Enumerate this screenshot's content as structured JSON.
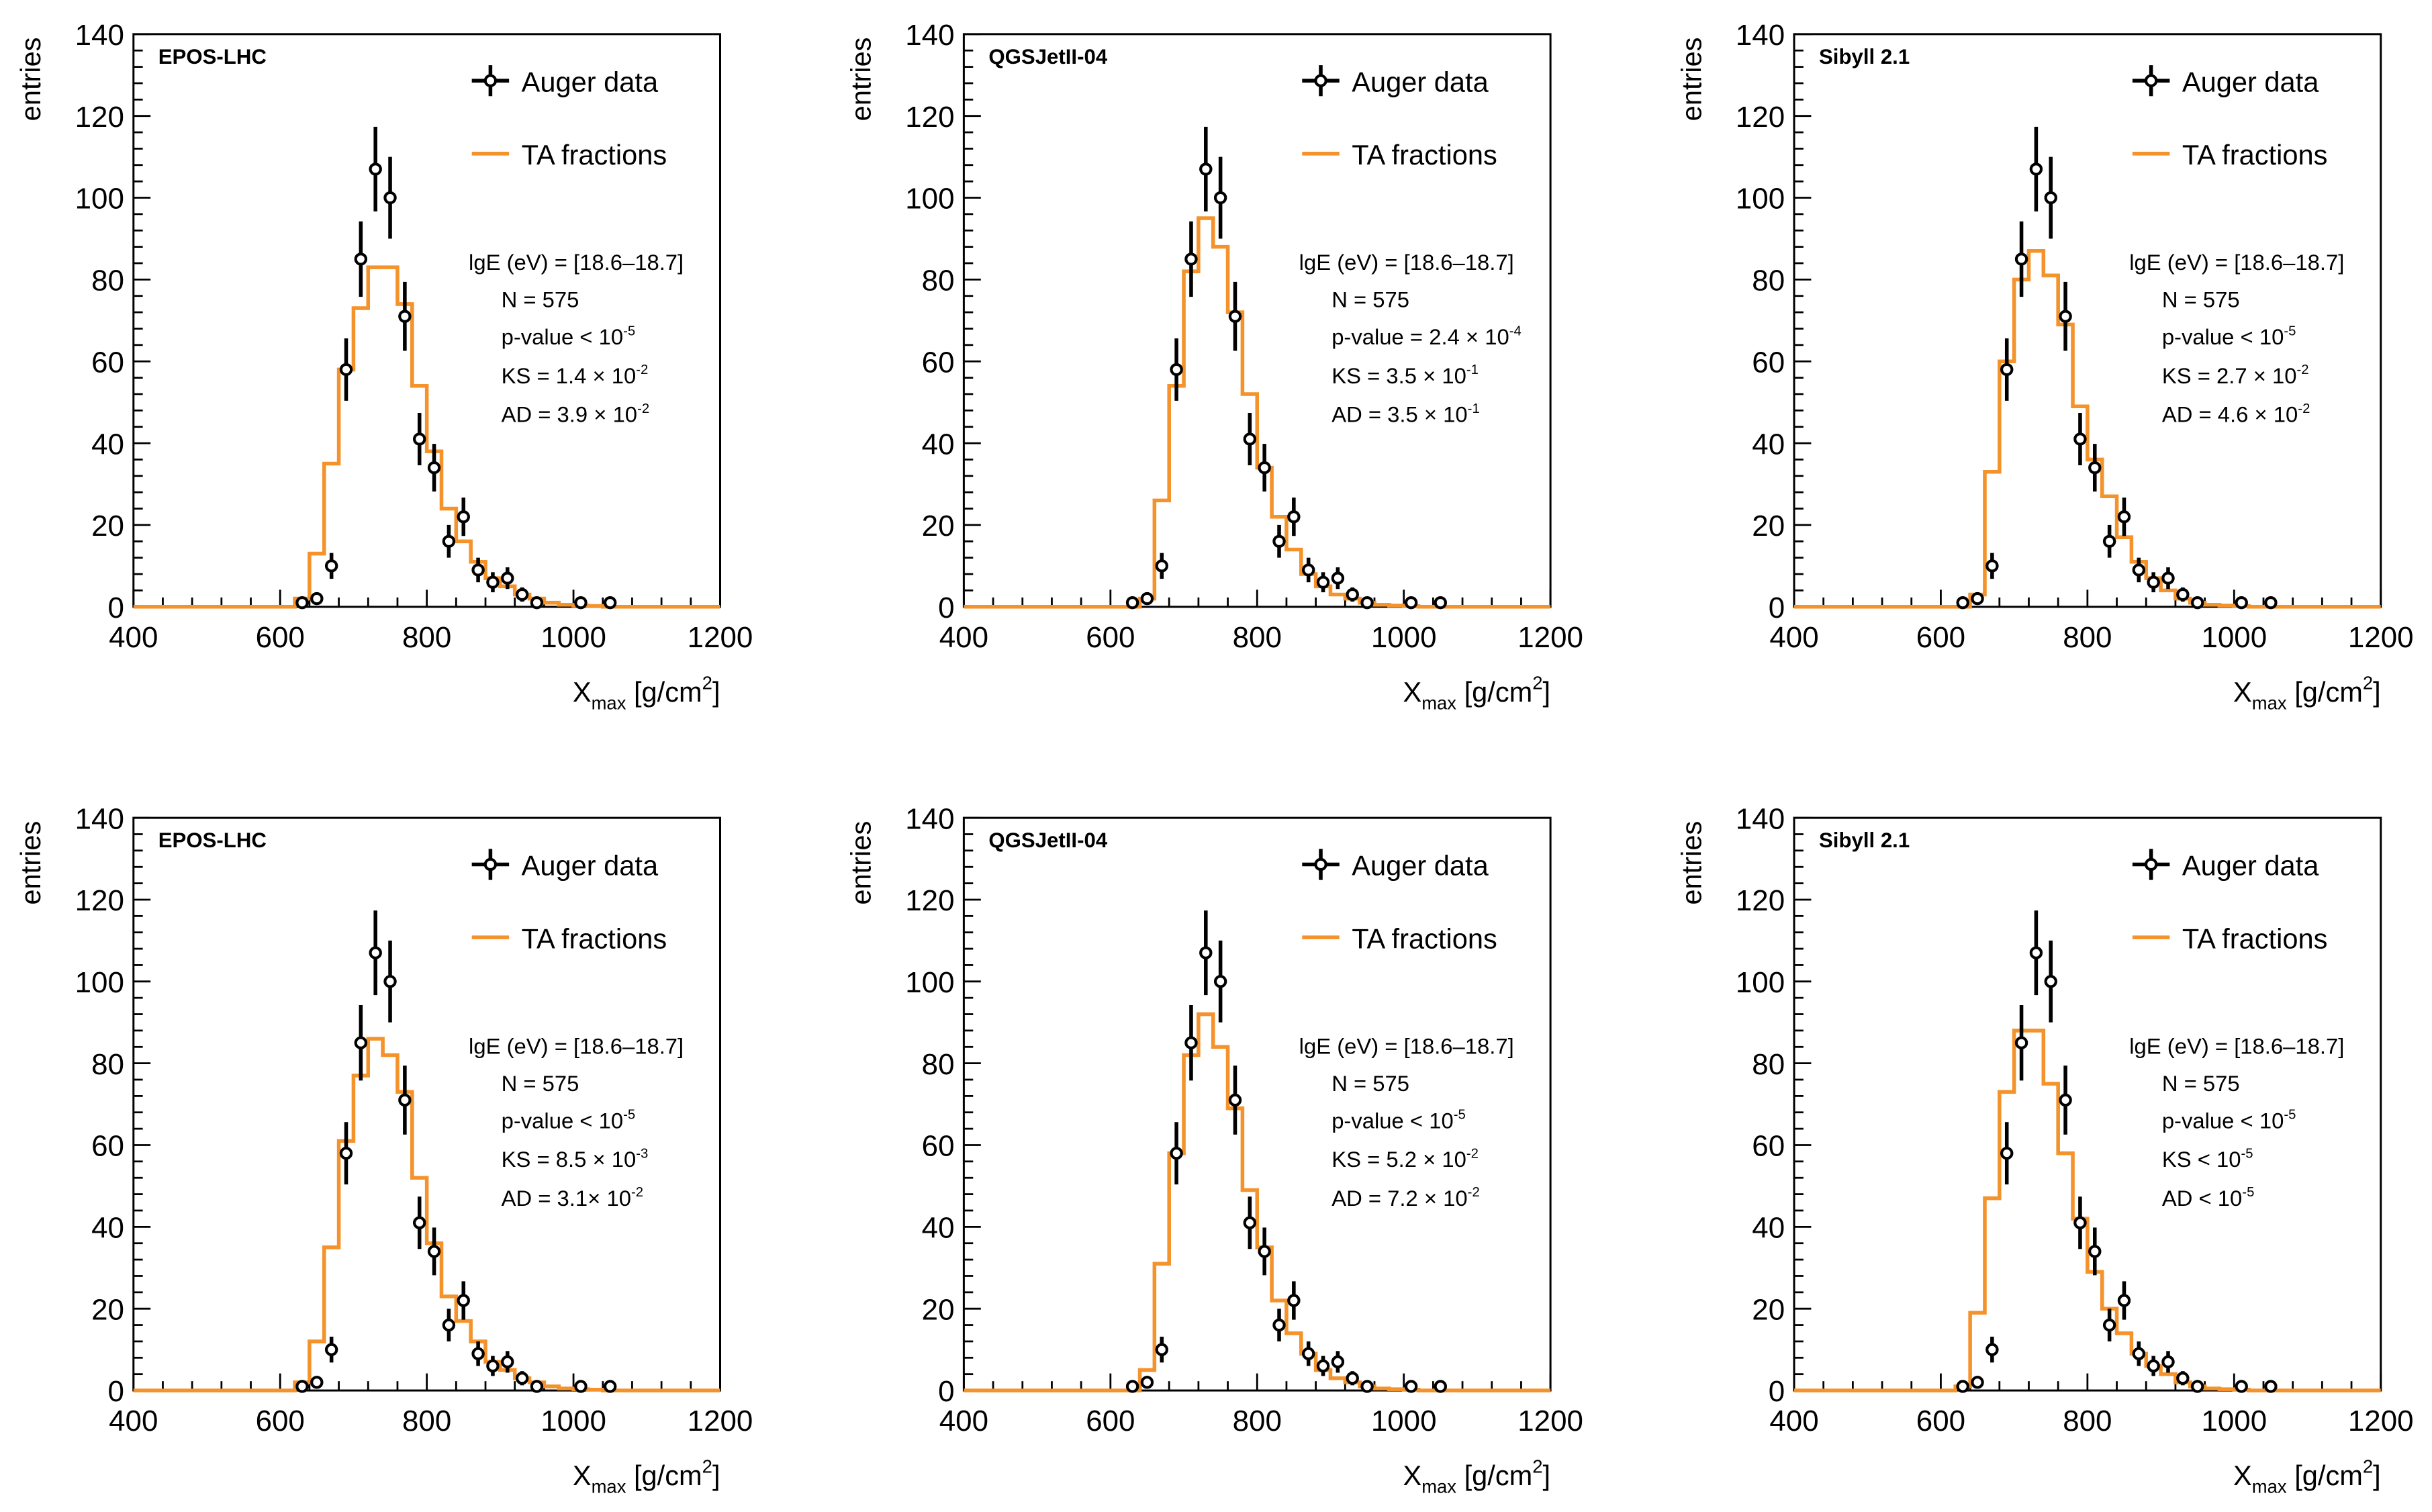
{
  "figure": {
    "x_edges": [
      620,
      640,
      660,
      680,
      700,
      720,
      740,
      760,
      780,
      800,
      820,
      840,
      860,
      880,
      900,
      920,
      940,
      960,
      980,
      1000,
      1020,
      1040,
      1060,
      1080,
      1100,
      1120,
      1140,
      1160,
      1180,
      1200
    ],
    "auger_data": {
      "x": [
        630,
        650,
        670,
        690,
        710,
        730,
        750,
        770,
        790,
        810,
        830,
        850,
        870,
        890,
        910,
        930,
        950,
        970,
        990,
        1010,
        1030,
        1050
      ],
      "y": [
        1,
        2,
        10,
        58,
        85,
        107,
        100,
        71,
        41,
        34,
        16,
        22,
        9,
        6,
        7,
        3,
        1,
        0,
        0,
        1,
        0,
        1
      ]
    },
    "colors": {
      "ta_line": "#f4922b",
      "data_marker": "#000000",
      "axis": "#000000"
    }
  },
  "chart_data": [
    {
      "type": "histogram",
      "model": "EPOS-LHC",
      "xlabel": "X",
      "xlabel_sub": "max",
      "xlabel_unit": "[g/cm",
      "xlabel_sup": "2",
      "xlabel_close": "]",
      "ylabel": "entries",
      "xlim": [
        400,
        1200
      ],
      "ylim": [
        0,
        140
      ],
      "x_ticks": [
        "400",
        "600",
        "800",
        "1000",
        "1200"
      ],
      "y_ticks": [
        "0",
        "20",
        "40",
        "60",
        "80",
        "100",
        "120",
        "140"
      ],
      "legend": {
        "data": "Auger data",
        "mc": "TA fractions"
      },
      "ta_fractions": [
        2,
        13,
        35,
        58,
        73,
        83,
        83,
        74,
        54,
        38,
        24,
        16,
        11,
        7,
        5,
        3,
        2,
        1,
        0.5,
        0.3,
        0.2,
        0,
        0,
        0,
        0,
        0,
        0,
        0,
        0
      ],
      "stats": {
        "lgE": "lgE (eV) = [18.6–18.7]",
        "N": "N = 575",
        "p": {
          "pre": "p-value < 10",
          "sup": "-5",
          "post": ""
        },
        "KS": {
          "pre": "KS = 1.4 × 10",
          "sup": "-2",
          "post": ""
        },
        "AD": {
          "pre": "AD = 3.9 × 10",
          "sup": "-2",
          "post": ""
        }
      }
    },
    {
      "type": "histogram",
      "model": "QGSJetII-04",
      "xlabel": "X",
      "xlabel_sub": "max",
      "xlabel_unit": "[g/cm",
      "xlabel_sup": "2",
      "xlabel_close": "]",
      "ylabel": "entries",
      "xlim": [
        400,
        1200
      ],
      "ylim": [
        0,
        140
      ],
      "x_ticks": [
        "400",
        "600",
        "800",
        "1000",
        "1200"
      ],
      "y_ticks": [
        "0",
        "20",
        "40",
        "60",
        "80",
        "100",
        "120",
        "140"
      ],
      "legend": {
        "data": "Auger data",
        "mc": "TA fractions"
      },
      "ta_fractions": [
        0,
        2,
        26,
        54,
        82,
        95,
        88,
        72,
        52,
        34,
        22,
        14,
        8,
        5,
        3,
        2,
        1,
        0.5,
        0.3,
        0.2,
        0,
        0,
        0,
        0,
        0,
        0,
        0,
        0,
        0
      ],
      "stats": {
        "lgE": "lgE (eV) = [18.6–18.7]",
        "N": "N = 575",
        "p": {
          "pre": "p-value = 2.4 × 10",
          "sup": "-4",
          "post": ""
        },
        "KS": {
          "pre": "KS = 3.5 × 10",
          "sup": "-1",
          "post": ""
        },
        "AD": {
          "pre": "AD = 3.5 × 10",
          "sup": "-1",
          "post": ""
        }
      }
    },
    {
      "type": "histogram",
      "model": "Sibyll 2.1",
      "xlabel": "X",
      "xlabel_sub": "max",
      "xlabel_unit": "[g/cm",
      "xlabel_sup": "2",
      "xlabel_close": "]",
      "ylabel": "entries",
      "xlim": [
        400,
        1200
      ],
      "ylim": [
        0,
        140
      ],
      "x_ticks": [
        "400",
        "600",
        "800",
        "1000",
        "1200"
      ],
      "y_ticks": [
        "0",
        "20",
        "40",
        "60",
        "80",
        "100",
        "120",
        "140"
      ],
      "legend": {
        "data": "Auger data",
        "mc": "TA fractions"
      },
      "ta_fractions": [
        0,
        3,
        33,
        60,
        80,
        87,
        81,
        69,
        49,
        36,
        27,
        17,
        11,
        7,
        4,
        2,
        1,
        0.5,
        0.3,
        0.2,
        0,
        0,
        0,
        0,
        0,
        0,
        0,
        0,
        0
      ],
      "stats": {
        "lgE": "lgE (eV) = [18.6–18.7]",
        "N": "N = 575",
        "p": {
          "pre": "p-value < 10",
          "sup": "-5",
          "post": ""
        },
        "KS": {
          "pre": "KS = 2.7 × 10",
          "sup": "-2",
          "post": ""
        },
        "AD": {
          "pre": "AD = 4.6 × 10",
          "sup": "-2",
          "post": ""
        }
      }
    },
    {
      "type": "histogram",
      "model": "EPOS-LHC",
      "xlabel": "X",
      "xlabel_sub": "max",
      "xlabel_unit": "[g/cm",
      "xlabel_sup": "2",
      "xlabel_close": "]",
      "ylabel": "entries",
      "xlim": [
        400,
        1200
      ],
      "ylim": [
        0,
        140
      ],
      "x_ticks": [
        "400",
        "600",
        "800",
        "1000",
        "1200"
      ],
      "y_ticks": [
        "0",
        "20",
        "40",
        "60",
        "80",
        "100",
        "120",
        "140"
      ],
      "legend": {
        "data": "Auger data",
        "mc": "TA fractions"
      },
      "ta_fractions": [
        2,
        12,
        35,
        61,
        77,
        86,
        82,
        73,
        52,
        36,
        23,
        17,
        12,
        7,
        5,
        3,
        2,
        1,
        0.5,
        0.3,
        0.2,
        0,
        0,
        0,
        0,
        0,
        0,
        0,
        0
      ],
      "stats": {
        "lgE": "lgE (eV) = [18.6–18.7]",
        "N": "N = 575",
        "p": {
          "pre": "p-value < 10",
          "sup": "-5",
          "post": ""
        },
        "KS": {
          "pre": "KS = 8.5 × 10",
          "sup": "-3",
          "post": ""
        },
        "AD": {
          "pre": "AD = 3.1× 10",
          "sup": "-2",
          "post": ""
        }
      }
    },
    {
      "type": "histogram",
      "model": "QGSJetII-04",
      "xlabel": "X",
      "xlabel_sub": "max",
      "xlabel_unit": "[g/cm",
      "xlabel_sup": "2",
      "xlabel_close": "]",
      "ylabel": "entries",
      "xlim": [
        400,
        1200
      ],
      "ylim": [
        0,
        140
      ],
      "x_ticks": [
        "400",
        "600",
        "800",
        "1000",
        "1200"
      ],
      "y_ticks": [
        "0",
        "20",
        "40",
        "60",
        "80",
        "100",
        "120",
        "140"
      ],
      "legend": {
        "data": "Auger data",
        "mc": "TA fractions"
      },
      "ta_fractions": [
        0,
        5,
        31,
        58,
        82,
        92,
        84,
        69,
        49,
        35,
        22,
        14,
        9,
        5,
        3,
        2,
        1,
        0.5,
        0.3,
        0.2,
        0,
        0,
        0,
        0,
        0,
        0,
        0,
        0,
        0
      ],
      "stats": {
        "lgE": "lgE (eV) = [18.6–18.7]",
        "N": "N = 575",
        "p": {
          "pre": "p-value < 10",
          "sup": "-5",
          "post": ""
        },
        "KS": {
          "pre": "KS = 5.2 × 10",
          "sup": "-2",
          "post": ""
        },
        "AD": {
          "pre": "AD = 7.2 × 10",
          "sup": "-2",
          "post": ""
        }
      }
    },
    {
      "type": "histogram",
      "model": "Sibyll 2.1",
      "xlabel": "X",
      "xlabel_sub": "max",
      "xlabel_unit": "[g/cm",
      "xlabel_sup": "2",
      "xlabel_close": "]",
      "ylabel": "entries",
      "xlim": [
        400,
        1200
      ],
      "ylim": [
        0,
        140
      ],
      "x_ticks": [
        "400",
        "600",
        "800",
        "1000",
        "1200"
      ],
      "y_ticks": [
        "0",
        "20",
        "40",
        "60",
        "80",
        "100",
        "120",
        "140"
      ],
      "legend": {
        "data": "Auger data",
        "mc": "TA fractions"
      },
      "ta_fractions": [
        1,
        19,
        47,
        73,
        88,
        88,
        75,
        58,
        42,
        29,
        20,
        14,
        9,
        6,
        4,
        2,
        1,
        0.5,
        0.3,
        0.2,
        0,
        0,
        0,
        0,
        0,
        0,
        0,
        0,
        0
      ],
      "stats": {
        "lgE": "lgE (eV) = [18.6–18.7]",
        "N": "N = 575",
        "p": {
          "pre": "p-value < 10",
          "sup": "-5",
          "post": ""
        },
        "KS": {
          "pre": "KS < 10",
          "sup": "-5",
          "post": ""
        },
        "AD": {
          "pre": "AD < 10",
          "sup": "-5",
          "post": ""
        }
      }
    }
  ]
}
